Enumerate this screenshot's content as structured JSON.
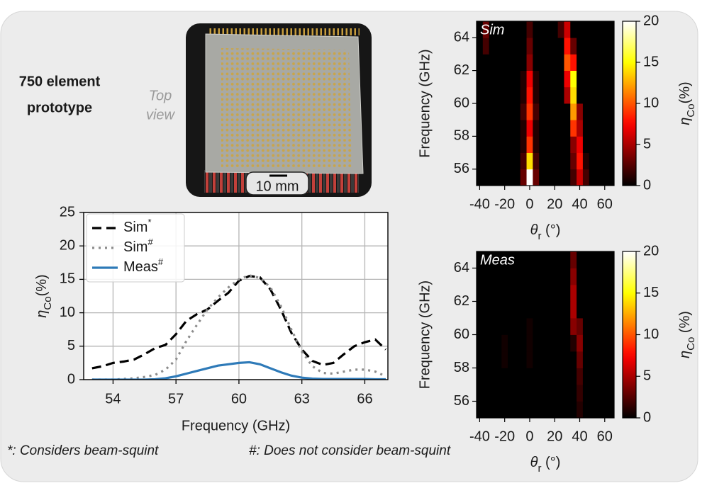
{
  "prototype_label": [
    "750 element",
    "prototype"
  ],
  "photo_caption": [
    "Top",
    "view"
  ],
  "scale_label": "10 mm",
  "footnotes": [
    "*: Considers beam-squint",
    "#: Does not consider beam-squint"
  ],
  "chart_data": [
    {
      "type": "line",
      "xlabel": "Frequency (GHz)",
      "ylabel": {
        "symbol": "η",
        "sub": "Co",
        "unit": "(%)"
      },
      "x": [
        53,
        53.5,
        54,
        54.5,
        55,
        55.5,
        56,
        56.5,
        57,
        57.5,
        58,
        58.5,
        59,
        59.5,
        60,
        60.5,
        61,
        61.5,
        62,
        62.5,
        63,
        63.5,
        64,
        64.5,
        65,
        65.5,
        66,
        66.5,
        67
      ],
      "xlim": [
        52.6,
        67.1
      ],
      "xticks": [
        54,
        57,
        60,
        63,
        66
      ],
      "ylim": [
        0,
        25
      ],
      "yticks": [
        0,
        5,
        10,
        15,
        20,
        25
      ],
      "grid": true,
      "legend": "upper left",
      "series": [
        {
          "name": "Sim",
          "sup": "*",
          "color": "#000000",
          "dash": "dashed",
          "values": [
            1.7,
            2.0,
            2.5,
            2.7,
            3.0,
            3.8,
            4.7,
            5.2,
            6.8,
            8.8,
            9.8,
            10.5,
            11.8,
            13.0,
            14.8,
            15.5,
            15.3,
            13.5,
            10.5,
            7.0,
            4.5,
            2.8,
            2.2,
            2.5,
            3.8,
            5.0,
            5.6,
            6.0,
            4.5
          ]
        },
        {
          "name": "Sim",
          "sup": "#",
          "color": "#8c8c8c",
          "dash": "dotted",
          "values": [
            0,
            0,
            0,
            0.1,
            0.2,
            0.4,
            0.7,
            1.5,
            3.0,
            5.8,
            8.2,
            10.5,
            12.3,
            13.8,
            15.0,
            15.6,
            15.2,
            13.8,
            11.0,
            7.5,
            4.2,
            2.0,
            1.0,
            0.9,
            1.2,
            1.5,
            1.5,
            1.2,
            0.5
          ]
        },
        {
          "name": "Meas",
          "sup": "#",
          "color": "#2e7ab8",
          "dash": "solid",
          "values": [
            0,
            0,
            0,
            0,
            0,
            0,
            0.05,
            0.2,
            0.5,
            0.9,
            1.3,
            1.7,
            2.1,
            2.3,
            2.5,
            2.6,
            2.3,
            1.7,
            1.1,
            0.6,
            0.3,
            0.15,
            0.1,
            0.1,
            0.1,
            0.1,
            0.1,
            0.05,
            0.05
          ]
        }
      ]
    },
    {
      "type": "heatmap",
      "label": "Sim",
      "ylabel": "Frequency (GHz)",
      "xlabel": {
        "symbol": "θ",
        "sub": "r",
        "unit": " (°)"
      },
      "clabel": {
        "symbol": "η",
        "sub": "Co",
        "unit": "(%)"
      },
      "colormap": "hot",
      "clim": [
        0,
        20
      ],
      "cticks": [
        0,
        5,
        10,
        15,
        20
      ],
      "xlim": [
        -42.5,
        67.5
      ],
      "ylim": [
        55,
        65
      ],
      "xticks": [
        -40,
        -20,
        0,
        20,
        40,
        60
      ],
      "yticks": [
        56,
        58,
        60,
        62,
        64
      ],
      "x": [
        -40,
        -35,
        -30,
        -25,
        -20,
        -15,
        -10,
        -5,
        0,
        5,
        10,
        15,
        20,
        25,
        30,
        35,
        40,
        45,
        50,
        55,
        60,
        65
      ],
      "y": [
        55.5,
        56.5,
        57.5,
        58.5,
        59.5,
        60.5,
        61.5,
        62.5,
        63.5,
        64.5
      ],
      "z": [
        [
          0,
          0,
          0,
          0,
          0,
          0,
          0,
          3,
          20,
          3,
          0,
          0,
          0,
          0,
          0,
          2,
          6,
          2,
          0,
          0,
          0,
          0
        ],
        [
          0,
          0,
          0,
          0,
          0,
          0,
          0,
          2,
          14,
          2,
          0,
          0,
          0,
          0,
          0,
          3,
          8,
          1,
          0,
          0,
          0,
          0
        ],
        [
          0,
          0,
          0,
          0,
          0,
          0,
          0,
          1,
          9,
          1,
          0,
          0,
          0,
          0,
          0,
          4,
          7,
          0,
          0,
          0,
          0,
          0
        ],
        [
          0,
          0,
          0,
          0,
          0,
          0,
          0,
          1,
          7,
          1,
          0,
          0,
          0,
          0,
          0,
          9,
          5,
          0,
          0,
          0,
          0,
          0
        ],
        [
          0,
          0,
          0,
          0,
          0,
          0,
          0,
          2,
          9,
          2,
          0,
          0,
          0,
          0,
          0,
          12,
          4,
          0,
          0,
          0,
          0,
          0
        ],
        [
          0,
          0,
          0,
          0,
          0,
          0,
          0,
          1,
          8,
          1,
          0,
          0,
          0,
          0,
          5,
          14,
          0,
          0,
          0,
          0,
          0,
          0
        ],
        [
          0,
          0,
          0,
          0,
          0,
          0,
          0,
          1,
          7,
          1,
          0,
          0,
          0,
          0,
          7,
          15,
          0,
          0,
          0,
          0,
          0,
          0
        ],
        [
          0,
          0,
          0,
          0,
          0,
          0,
          0,
          0,
          4,
          0,
          0,
          0,
          0,
          0,
          10,
          8,
          0,
          0,
          0,
          0,
          0,
          0
        ],
        [
          0,
          2,
          0,
          0,
          0,
          0,
          0,
          0,
          3,
          0,
          0,
          0,
          0,
          0,
          8,
          3,
          0,
          0,
          0,
          0,
          0,
          0
        ],
        [
          0,
          3,
          0,
          0,
          0,
          0,
          0,
          0,
          2,
          0,
          0,
          0,
          0,
          2,
          6,
          0,
          0,
          0,
          0,
          0,
          0,
          0
        ]
      ]
    },
    {
      "type": "heatmap",
      "label": "Meas",
      "ylabel": "Frequency (GHz)",
      "xlabel": {
        "symbol": "θ",
        "sub": "r",
        "unit": " (°)"
      },
      "clabel": {
        "symbol": "η",
        "sub": "Co",
        "unit": " (%)"
      },
      "colormap": "hot",
      "clim": [
        0,
        20
      ],
      "cticks": [
        0,
        5,
        10,
        15,
        20
      ],
      "xlim": [
        -42.5,
        67.5
      ],
      "ylim": [
        55,
        65
      ],
      "xticks": [
        -40,
        -20,
        0,
        20,
        40,
        60
      ],
      "yticks": [
        56,
        58,
        60,
        62,
        64
      ],
      "x": [
        -40,
        -35,
        -30,
        -25,
        -20,
        -15,
        -10,
        -5,
        0,
        5,
        10,
        15,
        20,
        25,
        30,
        35,
        40,
        45,
        50,
        55,
        60,
        65
      ],
      "y": [
        55.5,
        56.5,
        57.5,
        58.5,
        59.5,
        60.5,
        61.5,
        62.5,
        63.5,
        64.5
      ],
      "z": [
        [
          0,
          0,
          0,
          0,
          0,
          0,
          0,
          0,
          0,
          0,
          0,
          0,
          0,
          0,
          0,
          0,
          1,
          0,
          0,
          0,
          0,
          0
        ],
        [
          0,
          0,
          0,
          0,
          0,
          0,
          0,
          0,
          0,
          0,
          0,
          0,
          0,
          0,
          0,
          0,
          1.5,
          0,
          0,
          0,
          0,
          0
        ],
        [
          0,
          0,
          0,
          0,
          0,
          0,
          0,
          0,
          0,
          0,
          0,
          0,
          0,
          0,
          0,
          0,
          2,
          0,
          0,
          0,
          0,
          0
        ],
        [
          0,
          0,
          0,
          0,
          0.5,
          0,
          0,
          0,
          0.5,
          0,
          0,
          0,
          0,
          0,
          0,
          0,
          3,
          0,
          0,
          0,
          0,
          0
        ],
        [
          0,
          0,
          0,
          0,
          0.5,
          0,
          0,
          0,
          0.5,
          0,
          0,
          0,
          0,
          0,
          0,
          1,
          4,
          0,
          0,
          0,
          0,
          0
        ],
        [
          0,
          0,
          0,
          0,
          0,
          0,
          0,
          0,
          0.5,
          0,
          0,
          0,
          0,
          0,
          0,
          4,
          3,
          0,
          0,
          0,
          0,
          0
        ],
        [
          0,
          0,
          0,
          0,
          0,
          0,
          0,
          0,
          0,
          0,
          0,
          0,
          0,
          0,
          0,
          5,
          0,
          0,
          0,
          0,
          0,
          0
        ],
        [
          0,
          0,
          0,
          0,
          0,
          0,
          0,
          0,
          0,
          0,
          0,
          0,
          0,
          0,
          0,
          5,
          0,
          0,
          0,
          0,
          0,
          0
        ],
        [
          0,
          0,
          0,
          0,
          0,
          0,
          0,
          0,
          0,
          0,
          0,
          0,
          0,
          0,
          0,
          4,
          0,
          0,
          0,
          0,
          0,
          0
        ],
        [
          0,
          0,
          0,
          0,
          0,
          0,
          0,
          0,
          0,
          0,
          0,
          0,
          0,
          0,
          0,
          3,
          0,
          0,
          0,
          0,
          0,
          0
        ]
      ]
    }
  ]
}
